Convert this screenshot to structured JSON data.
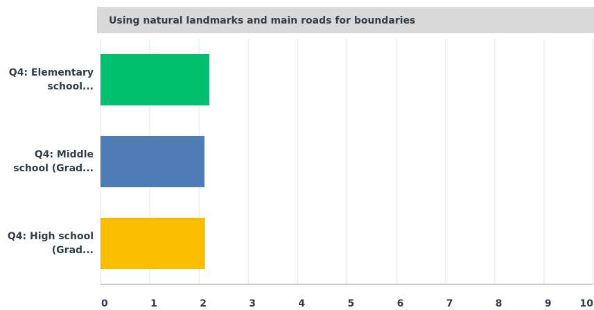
{
  "chart_data": {
    "type": "bar",
    "orientation": "horizontal",
    "title": "Using natural landmarks and main roads for boundaries",
    "categories": [
      "Q4: Elementary school...",
      "Q4: Middle school (Grad...",
      "Q4: High school (Grad..."
    ],
    "series": [
      {
        "name": null,
        "colors": [
          "#00bf6f",
          "#507cb6",
          "#f9be00"
        ],
        "values": [
          2.21,
          2.11,
          2.12
        ]
      }
    ],
    "xlim": [
      0,
      10
    ],
    "xticks": [
      0,
      1,
      2,
      3,
      4,
      5,
      6,
      7,
      8,
      9,
      10
    ],
    "grid": true
  }
}
